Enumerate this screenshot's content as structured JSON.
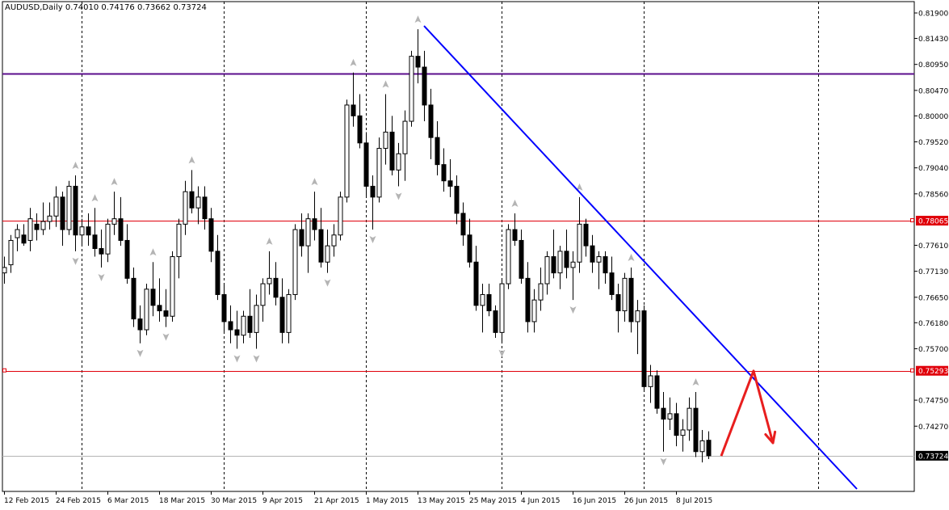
{
  "header": {
    "title": "AUDUSD,Daily  0.74010 0.74176 0.73662 0.73724"
  },
  "colors": {
    "candle": "#000000",
    "hline_purple": "#5b0e8c",
    "hline_red": "#e0000b",
    "trendline": "#0000ff",
    "arrow": "#e81e1e",
    "fractal": "#b4b4b4",
    "grid": "#000000",
    "label_red_bg": "#e0000b",
    "label_dark_bg": "#000000"
  },
  "chart_data": {
    "type": "candlestick",
    "title": "AUDUSD,Daily  0.74010 0.74176 0.73662 0.73724",
    "symbol": "AUDUSD",
    "timeframe": "Daily",
    "last_bar": {
      "open": 0.7401,
      "high": 0.74176,
      "low": 0.73662,
      "close": 0.73724
    },
    "ylim": [
      0.7311,
      0.8199
    ],
    "y_ticks": [
      "0.81900",
      "0.81430",
      "0.80950",
      "0.80470",
      "0.80000",
      "0.79520",
      "0.79040",
      "0.78560",
      "0.77610",
      "0.77130",
      "0.76650",
      "0.76180",
      "0.75700",
      "0.74750",
      "0.74270"
    ],
    "x_ticks": [
      {
        "label": "12 Feb 2015",
        "bar": 0
      },
      {
        "label": "24 Feb 2015",
        "bar": 8
      },
      {
        "label": "6 Mar 2015",
        "bar": 16
      },
      {
        "label": "18 Mar 2015",
        "bar": 24
      },
      {
        "label": "30 Mar 2015",
        "bar": 32
      },
      {
        "label": "9 Apr 2015",
        "bar": 40
      },
      {
        "label": "21 Apr 2015",
        "bar": 48
      },
      {
        "label": "1 May 2015",
        "bar": 56
      },
      {
        "label": "13 May 2015",
        "bar": 64
      },
      {
        "label": "25 May 2015",
        "bar": 72
      },
      {
        "label": "4 Jun 2015",
        "bar": 80
      },
      {
        "label": "16 Jun 2015",
        "bar": 88
      },
      {
        "label": "26 Jun 2015",
        "bar": 96
      },
      {
        "label": "8 Jul 2015",
        "bar": 104
      }
    ],
    "vlines_at_bar": [
      12,
      34,
      56,
      77,
      99,
      126
    ],
    "hlines": [
      {
        "price": 0.8078,
        "color": "#5b0e8c",
        "label": ""
      },
      {
        "price": 0.78065,
        "color": "#e0000b",
        "label": "0.78065"
      },
      {
        "price": 0.75293,
        "color": "#e0000b",
        "label": "0.75293"
      },
      {
        "price": 0.73724,
        "color": "#b4b4b4",
        "label": "0.73724"
      }
    ],
    "trendline": {
      "from": {
        "bar": 65,
        "price": 0.8166
      },
      "to": {
        "bar": 132,
        "price": 0.7311
      }
    },
    "projection_arrow": [
      {
        "bar": 111,
        "price": 0.7372
      },
      {
        "bar": 116,
        "price": 0.7529
      },
      {
        "bar": 119,
        "price": 0.7396
      }
    ],
    "candles": [
      [
        0.771,
        0.774,
        0.769,
        0.772
      ],
      [
        0.7725,
        0.778,
        0.771,
        0.777
      ],
      [
        0.7775,
        0.78,
        0.775,
        0.779
      ],
      [
        0.778,
        0.78,
        0.776,
        0.7765
      ],
      [
        0.777,
        0.783,
        0.775,
        0.781
      ],
      [
        0.78,
        0.782,
        0.777,
        0.779
      ],
      [
        0.779,
        0.784,
        0.778,
        0.7805
      ],
      [
        0.7805,
        0.784,
        0.779,
        0.7815
      ],
      [
        0.7815,
        0.787,
        0.7795,
        0.785
      ],
      [
        0.785,
        0.786,
        0.776,
        0.779
      ],
      [
        0.779,
        0.788,
        0.778,
        0.787
      ],
      [
        0.787,
        0.789,
        0.775,
        0.778
      ],
      [
        0.778,
        0.781,
        0.776,
        0.7795
      ],
      [
        0.7795,
        0.782,
        0.776,
        0.778
      ],
      [
        0.778,
        0.783,
        0.774,
        0.7755
      ],
      [
        0.7755,
        0.779,
        0.772,
        0.7745
      ],
      [
        0.7745,
        0.781,
        0.773,
        0.78
      ],
      [
        0.78,
        0.786,
        0.778,
        0.781
      ],
      [
        0.781,
        0.785,
        0.776,
        0.777
      ],
      [
        0.777,
        0.78,
        0.769,
        0.77
      ],
      [
        0.77,
        0.772,
        0.761,
        0.7625
      ],
      [
        0.7625,
        0.765,
        0.758,
        0.7605
      ],
      [
        0.7605,
        0.769,
        0.7595,
        0.768
      ],
      [
        0.768,
        0.773,
        0.763,
        0.765
      ],
      [
        0.765,
        0.77,
        0.762,
        0.764
      ],
      [
        0.764,
        0.768,
        0.761,
        0.763
      ],
      [
        0.763,
        0.775,
        0.762,
        0.774
      ],
      [
        0.774,
        0.781,
        0.77,
        0.78
      ],
      [
        0.78,
        0.788,
        0.778,
        0.786
      ],
      [
        0.786,
        0.79,
        0.782,
        0.783
      ],
      [
        0.783,
        0.787,
        0.78,
        0.785
      ],
      [
        0.785,
        0.787,
        0.779,
        0.781
      ],
      [
        0.781,
        0.783,
        0.773,
        0.775
      ],
      [
        0.775,
        0.778,
        0.766,
        0.767
      ],
      [
        0.767,
        0.769,
        0.76,
        0.762
      ],
      [
        0.762,
        0.765,
        0.758,
        0.7605
      ],
      [
        0.7605,
        0.764,
        0.757,
        0.7595
      ],
      [
        0.7595,
        0.764,
        0.758,
        0.763
      ],
      [
        0.763,
        0.768,
        0.759,
        0.76
      ],
      [
        0.76,
        0.767,
        0.757,
        0.765
      ],
      [
        0.765,
        0.77,
        0.762,
        0.769
      ],
      [
        0.769,
        0.775,
        0.767,
        0.77
      ],
      [
        0.77,
        0.773,
        0.765,
        0.7665
      ],
      [
        0.7665,
        0.77,
        0.758,
        0.76
      ],
      [
        0.76,
        0.768,
        0.758,
        0.767
      ],
      [
        0.767,
        0.78,
        0.766,
        0.779
      ],
      [
        0.779,
        0.782,
        0.774,
        0.776
      ],
      [
        0.776,
        0.782,
        0.771,
        0.781
      ],
      [
        0.781,
        0.786,
        0.777,
        0.779
      ],
      [
        0.779,
        0.783,
        0.772,
        0.773
      ],
      [
        0.773,
        0.779,
        0.771,
        0.776
      ],
      [
        0.776,
        0.78,
        0.774,
        0.778
      ],
      [
        0.778,
        0.786,
        0.777,
        0.785
      ],
      [
        0.785,
        0.803,
        0.784,
        0.802
      ],
      [
        0.802,
        0.808,
        0.798,
        0.8
      ],
      [
        0.8,
        0.804,
        0.794,
        0.795
      ],
      [
        0.795,
        0.797,
        0.785,
        0.787
      ],
      [
        0.787,
        0.789,
        0.779,
        0.785
      ],
      [
        0.785,
        0.796,
        0.784,
        0.794
      ],
      [
        0.794,
        0.804,
        0.791,
        0.797
      ],
      [
        0.797,
        0.8,
        0.789,
        0.79
      ],
      [
        0.79,
        0.795,
        0.787,
        0.793
      ],
      [
        0.793,
        0.801,
        0.788,
        0.799
      ],
      [
        0.799,
        0.812,
        0.798,
        0.811
      ],
      [
        0.811,
        0.816,
        0.806,
        0.809
      ],
      [
        0.809,
        0.812,
        0.799,
        0.802
      ],
      [
        0.802,
        0.805,
        0.792,
        0.796
      ],
      [
        0.796,
        0.799,
        0.789,
        0.791
      ],
      [
        0.791,
        0.794,
        0.786,
        0.788
      ],
      [
        0.788,
        0.792,
        0.785,
        0.787
      ],
      [
        0.787,
        0.789,
        0.78,
        0.782
      ],
      [
        0.782,
        0.784,
        0.776,
        0.778
      ],
      [
        0.778,
        0.781,
        0.772,
        0.773
      ],
      [
        0.773,
        0.776,
        0.764,
        0.765
      ],
      [
        0.765,
        0.769,
        0.76,
        0.767
      ],
      [
        0.767,
        0.769,
        0.763,
        0.764
      ],
      [
        0.764,
        0.765,
        0.759,
        0.76
      ],
      [
        0.76,
        0.77,
        0.758,
        0.769
      ],
      [
        0.769,
        0.78,
        0.768,
        0.779
      ],
      [
        0.779,
        0.782,
        0.776,
        0.777
      ],
      [
        0.777,
        0.779,
        0.769,
        0.77
      ],
      [
        0.77,
        0.773,
        0.76,
        0.762
      ],
      [
        0.762,
        0.768,
        0.76,
        0.766
      ],
      [
        0.766,
        0.772,
        0.764,
        0.769
      ],
      [
        0.769,
        0.775,
        0.767,
        0.774
      ],
      [
        0.774,
        0.779,
        0.77,
        0.771
      ],
      [
        0.771,
        0.776,
        0.768,
        0.775
      ],
      [
        0.775,
        0.779,
        0.77,
        0.772
      ],
      [
        0.772,
        0.775,
        0.766,
        0.773
      ],
      [
        0.773,
        0.785,
        0.771,
        0.78
      ],
      [
        0.78,
        0.781,
        0.774,
        0.776
      ],
      [
        0.776,
        0.778,
        0.771,
        0.773
      ],
      [
        0.773,
        0.775,
        0.768,
        0.774
      ],
      [
        0.774,
        0.775,
        0.769,
        0.771
      ],
      [
        0.771,
        0.774,
        0.766,
        0.767
      ],
      [
        0.767,
        0.769,
        0.76,
        0.764
      ],
      [
        0.764,
        0.771,
        0.762,
        0.77
      ],
      [
        0.77,
        0.772,
        0.76,
        0.762
      ],
      [
        0.762,
        0.766,
        0.756,
        0.764
      ],
      [
        0.764,
        0.765,
        0.749,
        0.75
      ],
      [
        0.75,
        0.754,
        0.747,
        0.752
      ],
      [
        0.752,
        0.753,
        0.745,
        0.746
      ],
      [
        0.746,
        0.749,
        0.738,
        0.744
      ],
      [
        0.744,
        0.748,
        0.742,
        0.745
      ],
      [
        0.745,
        0.747,
        0.739,
        0.741
      ],
      [
        0.741,
        0.744,
        0.738,
        0.742
      ],
      [
        0.742,
        0.748,
        0.74,
        0.746
      ],
      [
        0.746,
        0.749,
        0.737,
        0.738
      ],
      [
        0.738,
        0.742,
        0.736,
        0.74
      ],
      [
        0.7401,
        0.74176,
        0.73662,
        0.73724
      ]
    ]
  }
}
